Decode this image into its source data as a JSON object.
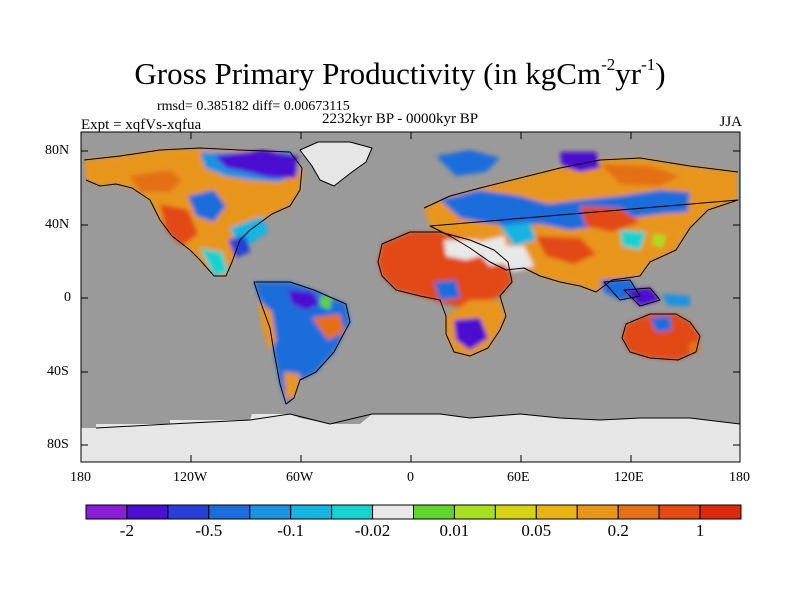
{
  "title": {
    "main": "Gross Primary Productivity (in kgCm",
    "exp1": "-2",
    "mid": "yr",
    "exp2": "-1",
    "end": ")"
  },
  "stats_line": "rmsd= 0.385182 diff= 0.00673115",
  "period_label": "2232kyr BP - 0000kyr BP",
  "experiment_label": "Expt = xqfVs-xqfua",
  "season_label": "JJA",
  "map": {
    "lat_ticks": [
      "80N",
      "40N",
      "0",
      "40S",
      "80S"
    ],
    "lon_ticks": [
      "180",
      "120W",
      "60W",
      "0",
      "60E",
      "120E",
      "180"
    ],
    "colors": {
      "ocean": "#9a9a9a",
      "ice": "#e6e6e6",
      "coast": "#000000"
    }
  },
  "colorbar": {
    "colors": [
      "#8a1fd8",
      "#4b10d0",
      "#2840d8",
      "#1c6ddc",
      "#1d92e0",
      "#16b4e0",
      "#18d2cf",
      "#e8e8e8",
      "#5ed42c",
      "#a8de20",
      "#d6d214",
      "#e8b414",
      "#e8951a",
      "#e47018",
      "#e24a12",
      "#dd2a10"
    ],
    "labels": [
      "-2",
      "-0.5",
      "-0.1",
      "-0.02",
      "0.01",
      "0.05",
      "0.2",
      "1"
    ]
  }
}
